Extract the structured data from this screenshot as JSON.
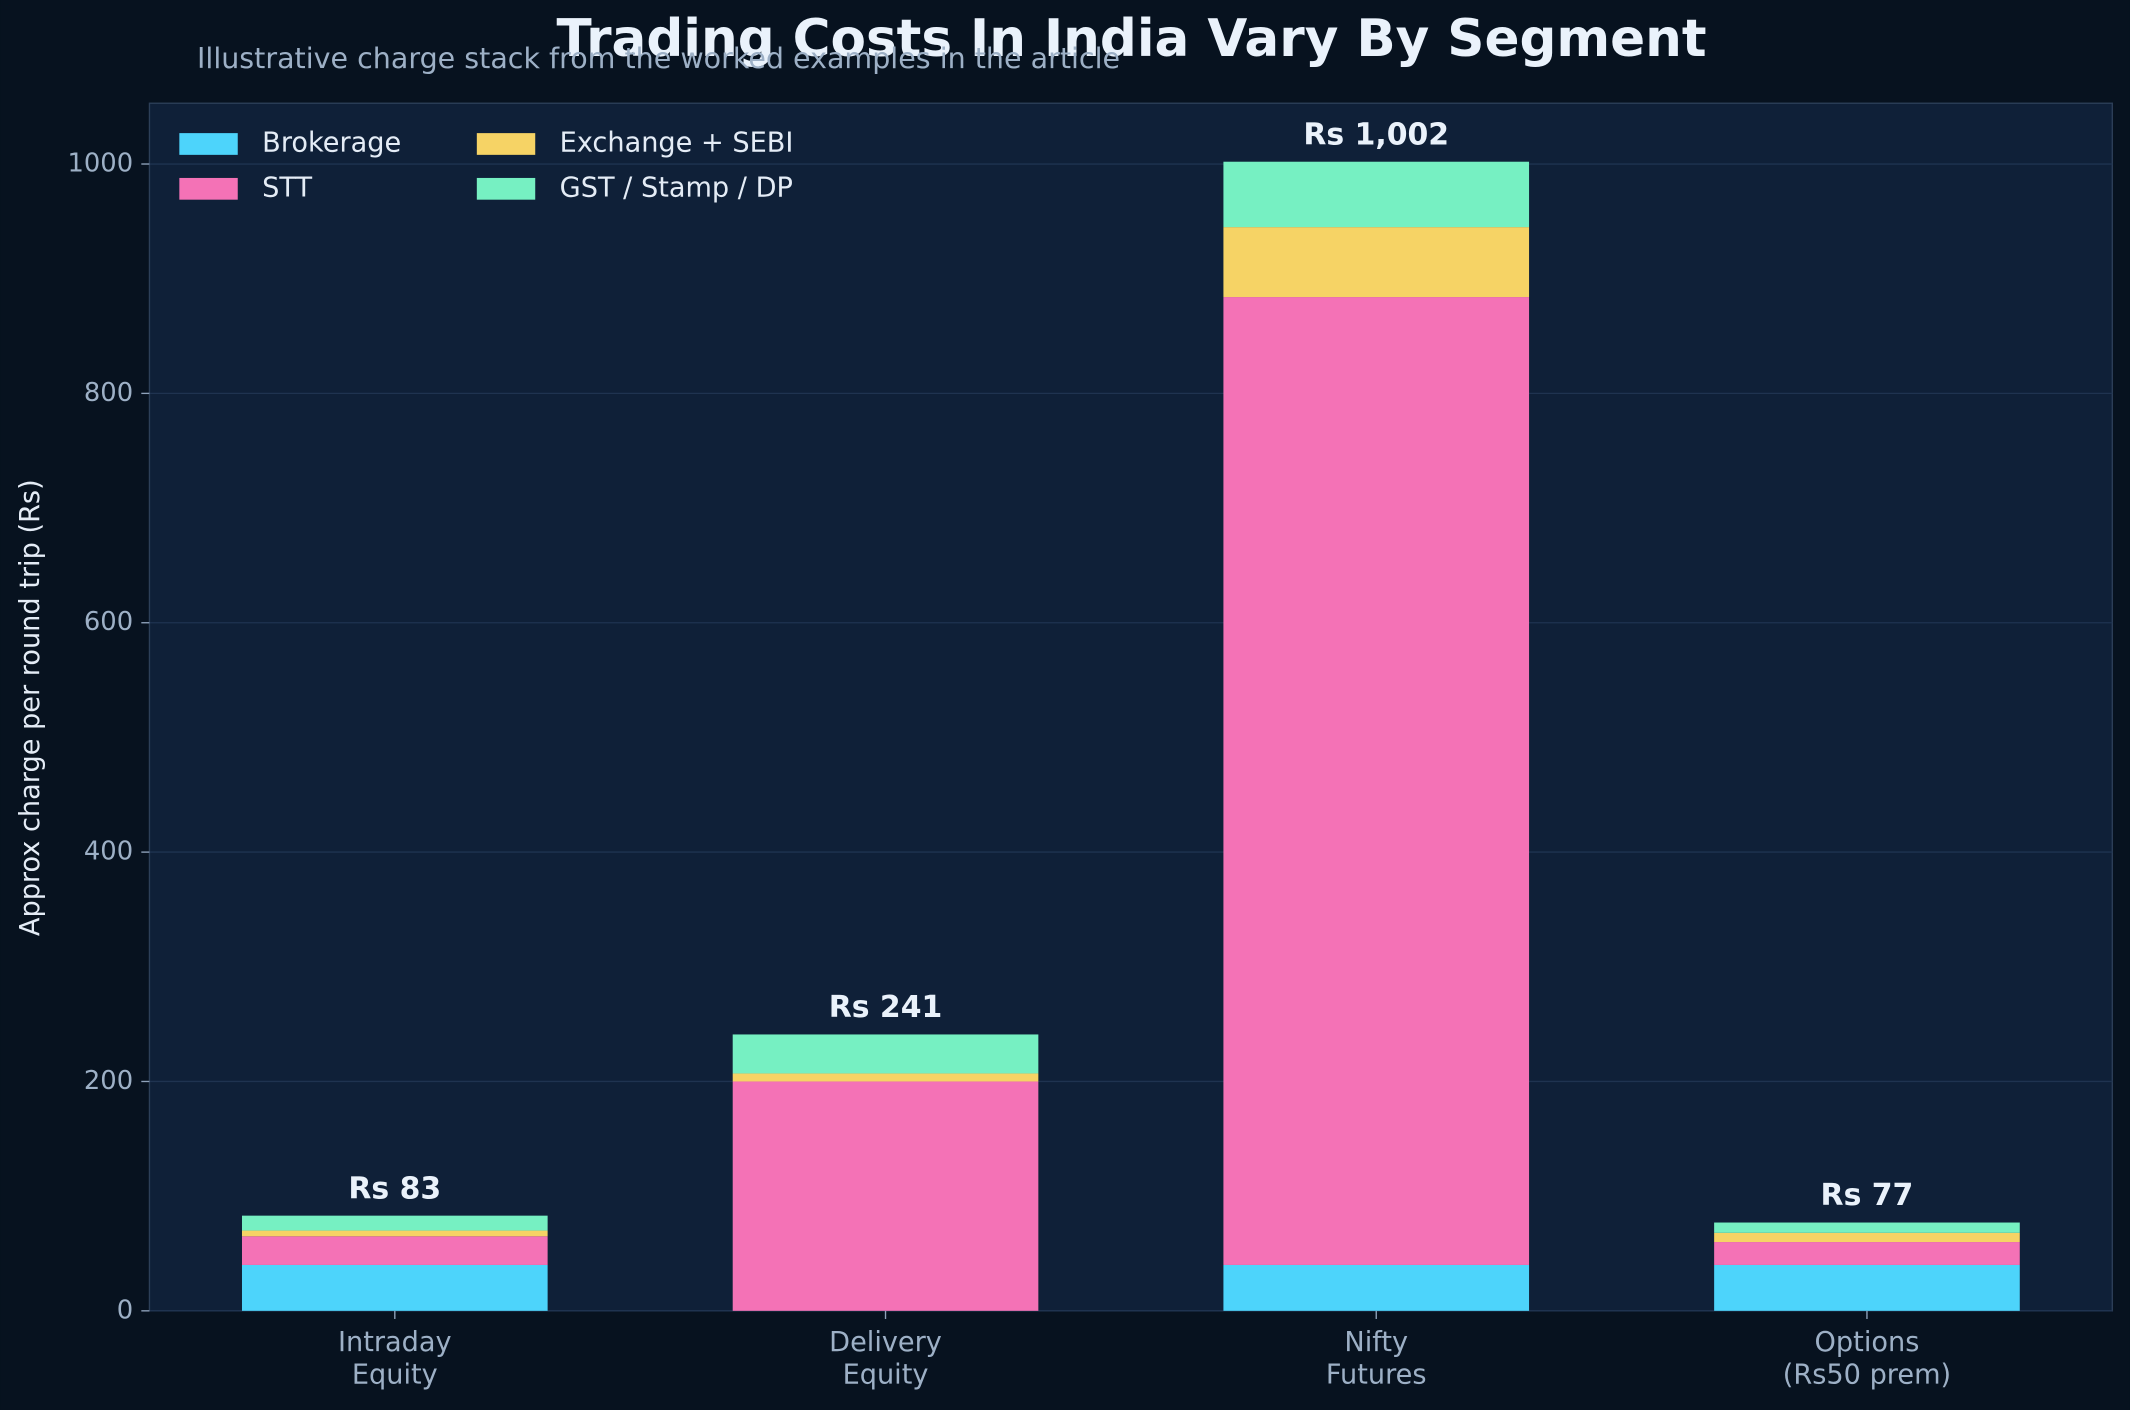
{
  "chart_data": {
    "type": "stacked_bar",
    "title": "Trading Costs In India Vary By Segment",
    "subtitle": "Illustrative charge stack from the worked examples in the article",
    "y_label": "Approx charge per round trip (Rs)",
    "categories": [
      [
        "Intraday",
        "Equity"
      ],
      [
        "Delivery",
        "Equity"
      ],
      [
        "Nifty",
        "Futures"
      ],
      [
        "Options",
        "(Rs50 prem)"
      ]
    ],
    "series": [
      {
        "name": "Brokerage",
        "color": "#4dd4fb",
        "values": [
          40,
          0,
          40,
          40
        ]
      },
      {
        "name": "STT",
        "color": "#f472b6",
        "values": [
          25,
          200,
          844,
          20
        ]
      },
      {
        "name": "Exchange + SEBI",
        "color": "#f6d365",
        "values": [
          5,
          7,
          61,
          8
        ]
      },
      {
        "name": "GST / Stamp / DP",
        "color": "#76f0c2",
        "values": [
          13,
          34,
          57,
          9
        ]
      }
    ],
    "totals": [
      83,
      241,
      1002,
      77
    ],
    "total_labels": [
      "Rs 83",
      "Rs 241",
      "Rs 1,002",
      "Rs 77"
    ],
    "ylim": [
      0,
      1053
    ],
    "yticks": [
      0,
      200,
      400,
      600,
      800,
      1000
    ],
    "grid": true,
    "legend": "upper left"
  }
}
